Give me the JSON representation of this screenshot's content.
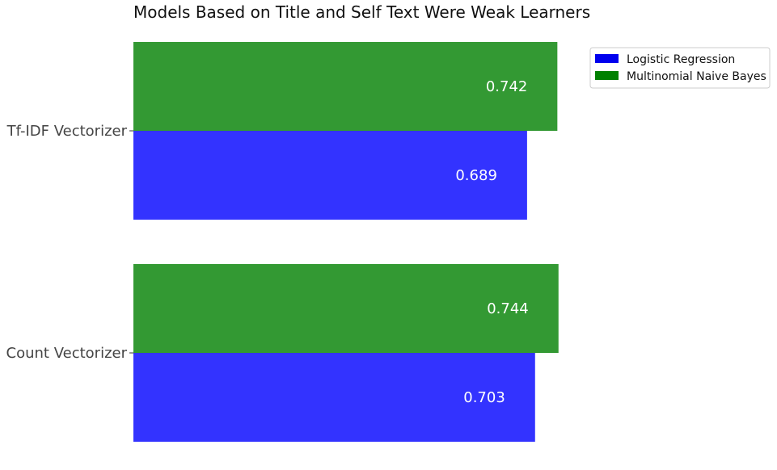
{
  "chart_data": {
    "type": "bar",
    "orientation": "horizontal",
    "title": "Models Based on Title and Self Text Were Weak Learners",
    "xlabel": "",
    "ylabel": "",
    "categories": [
      "Tf-IDF Vectorizer",
      "Count Vectorizer"
    ],
    "series": [
      {
        "name": "Logistic Regression",
        "values": [
          0.689,
          0.703
        ],
        "color": "#3333ff",
        "legend_color": "#0000ee"
      },
      {
        "name": "Multinomial Naive Bayes",
        "values": [
          0.742,
          0.744
        ],
        "color": "#339933",
        "legend_color": "#008000"
      }
    ],
    "xlim": [
      0,
      0.75
    ],
    "grid": false,
    "legend_position": "top-right-outside"
  }
}
